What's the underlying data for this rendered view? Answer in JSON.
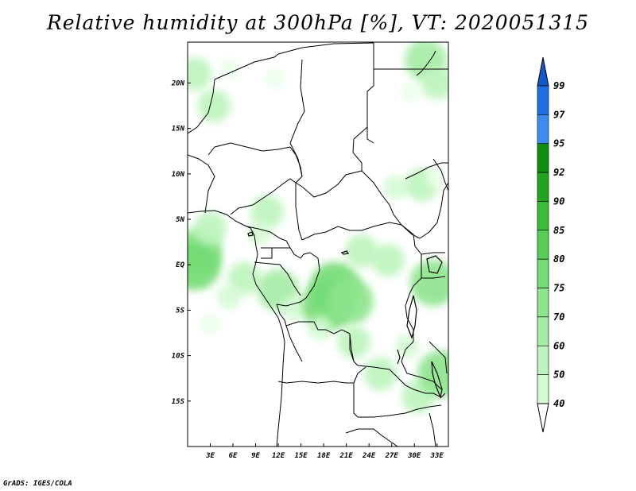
{
  "title": "Relative humidity at 300hPa [%], VT: 2020051315",
  "credit": "GrADS: IGES/COLA",
  "map": {
    "lon_range": [
      0,
      34.5
    ],
    "lat_range": [
      -20,
      24.5
    ],
    "lat_ticks": [
      {
        "value": 20,
        "label": "20N"
      },
      {
        "value": 15,
        "label": "15N"
      },
      {
        "value": 10,
        "label": "10N"
      },
      {
        "value": 5,
        "label": "5N"
      },
      {
        "value": 0,
        "label": "EQ"
      },
      {
        "value": -5,
        "label": "5S"
      },
      {
        "value": -10,
        "label": "10S"
      },
      {
        "value": -15,
        "label": "15S"
      }
    ],
    "lon_ticks": [
      {
        "value": 3,
        "label": "3E"
      },
      {
        "value": 6,
        "label": "6E"
      },
      {
        "value": 9,
        "label": "9E"
      },
      {
        "value": 12,
        "label": "12E"
      },
      {
        "value": 15,
        "label": "15E"
      },
      {
        "value": 18,
        "label": "18E"
      },
      {
        "value": 21,
        "label": "21E"
      },
      {
        "value": 24,
        "label": "24E"
      },
      {
        "value": 27,
        "label": "27E"
      },
      {
        "value": 30,
        "label": "30E"
      },
      {
        "value": 33,
        "label": "33E"
      }
    ]
  },
  "colorbar": {
    "levels": [
      {
        "label": "40",
        "color": "#eaffea"
      },
      {
        "label": "50",
        "color": "#d4fad4"
      },
      {
        "label": "60",
        "color": "#bdf4bd"
      },
      {
        "label": "70",
        "color": "#a5eca5"
      },
      {
        "label": "75",
        "color": "#8ce48c"
      },
      {
        "label": "80",
        "color": "#73dc73"
      },
      {
        "label": "85",
        "color": "#55cf55"
      },
      {
        "label": "90",
        "color": "#38bd38"
      },
      {
        "label": "92",
        "color": "#1fa51f"
      },
      {
        "label": "95",
        "color": "#0e8f0e"
      },
      {
        "label": "97",
        "color": "#3b8cf0"
      },
      {
        "label": "99",
        "color": "#1e6ee6"
      }
    ],
    "top_color": "#1358cc",
    "bottom_color": "#ffffff"
  },
  "humidity_areas": [
    {
      "lon": 1.0,
      "lat": 21.0,
      "value": 60
    },
    {
      "lon": 3.5,
      "lat": 17.5,
      "value": 60
    },
    {
      "lon": 5.5,
      "lat": 21.5,
      "value": 45
    },
    {
      "lon": 11.5,
      "lat": 20.5,
      "value": 45
    },
    {
      "lon": 10.5,
      "lat": 5.8,
      "value": 60
    },
    {
      "lon": 9.5,
      "lat": 3.5,
      "value": 50
    },
    {
      "lon": 1.5,
      "lat": 1.5,
      "value": 75
    },
    {
      "lon": 1.0,
      "lat": 0.0,
      "value": 80
    },
    {
      "lon": 3.0,
      "lat": 4.0,
      "value": 60
    },
    {
      "lon": 7.5,
      "lat": -1.5,
      "value": 60
    },
    {
      "lon": 5.5,
      "lat": -3.5,
      "value": 50
    },
    {
      "lon": 3.0,
      "lat": -6.5,
      "value": 45
    },
    {
      "lon": 12.0,
      "lat": -2.8,
      "value": 70
    },
    {
      "lon": 14.0,
      "lat": -4.8,
      "value": 50
    },
    {
      "lon": 19.5,
      "lat": -2.5,
      "value": 80
    },
    {
      "lon": 18.5,
      "lat": -4.5,
      "value": 80
    },
    {
      "lon": 21.5,
      "lat": -4.0,
      "value": 75
    },
    {
      "lon": 23.0,
      "lat": 1.5,
      "value": 60
    },
    {
      "lon": 26.5,
      "lat": 0.5,
      "value": 60
    },
    {
      "lon": 22.0,
      "lat": -8.5,
      "value": 60
    },
    {
      "lon": 17.5,
      "lat": -7.0,
      "value": 50
    },
    {
      "lon": 25.5,
      "lat": -12.0,
      "value": 60
    },
    {
      "lon": 29.0,
      "lat": -9.0,
      "value": 50
    },
    {
      "lon": 30.5,
      "lat": -14.5,
      "value": 60
    },
    {
      "lon": 33.5,
      "lat": -12.0,
      "value": 75
    },
    {
      "lon": 27.5,
      "lat": 8.5,
      "value": 50
    },
    {
      "lon": 31.0,
      "lat": 8.8,
      "value": 60
    },
    {
      "lon": 33.0,
      "lat": 9.5,
      "value": 45
    },
    {
      "lon": 31.5,
      "lat": 22.5,
      "value": 70
    },
    {
      "lon": 33.0,
      "lat": 20.0,
      "value": 60
    },
    {
      "lon": 29.5,
      "lat": 19.0,
      "value": 45
    },
    {
      "lon": 32.5,
      "lat": -2.0,
      "value": 75
    }
  ]
}
